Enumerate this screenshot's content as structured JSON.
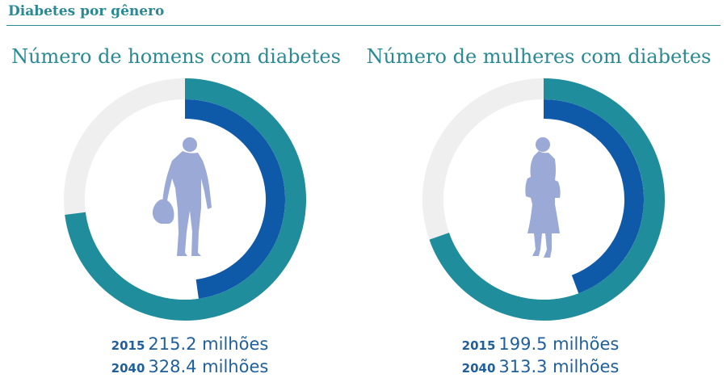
{
  "header": {
    "title": "Diabetes por gênero"
  },
  "colors": {
    "teal": "#1f8d9b",
    "blue": "#0e5aa8",
    "track": "#efefef",
    "figure": "#9aa9d6",
    "text_teal": "#2a8a93",
    "text_blue": "#1f5f9c"
  },
  "chart_data": [
    {
      "type": "pie",
      "title": "Número de homens com diabetes",
      "icon": "man-silhouette-icon",
      "series": [
        {
          "name": "2015",
          "value": 215.2,
          "label": "215.2 milhões"
        },
        {
          "name": "2040",
          "value": 328.4,
          "label": "328.4 milhões"
        }
      ],
      "max": 450
    },
    {
      "type": "pie",
      "title": "Número de mulheres com diabetes",
      "icon": "woman-silhouette-icon",
      "series": [
        {
          "name": "2015",
          "value": 199.5,
          "label": "199.5 milhões"
        },
        {
          "name": "2040",
          "value": 313.3,
          "label": "313.3 milhões"
        }
      ],
      "max": 450
    }
  ]
}
